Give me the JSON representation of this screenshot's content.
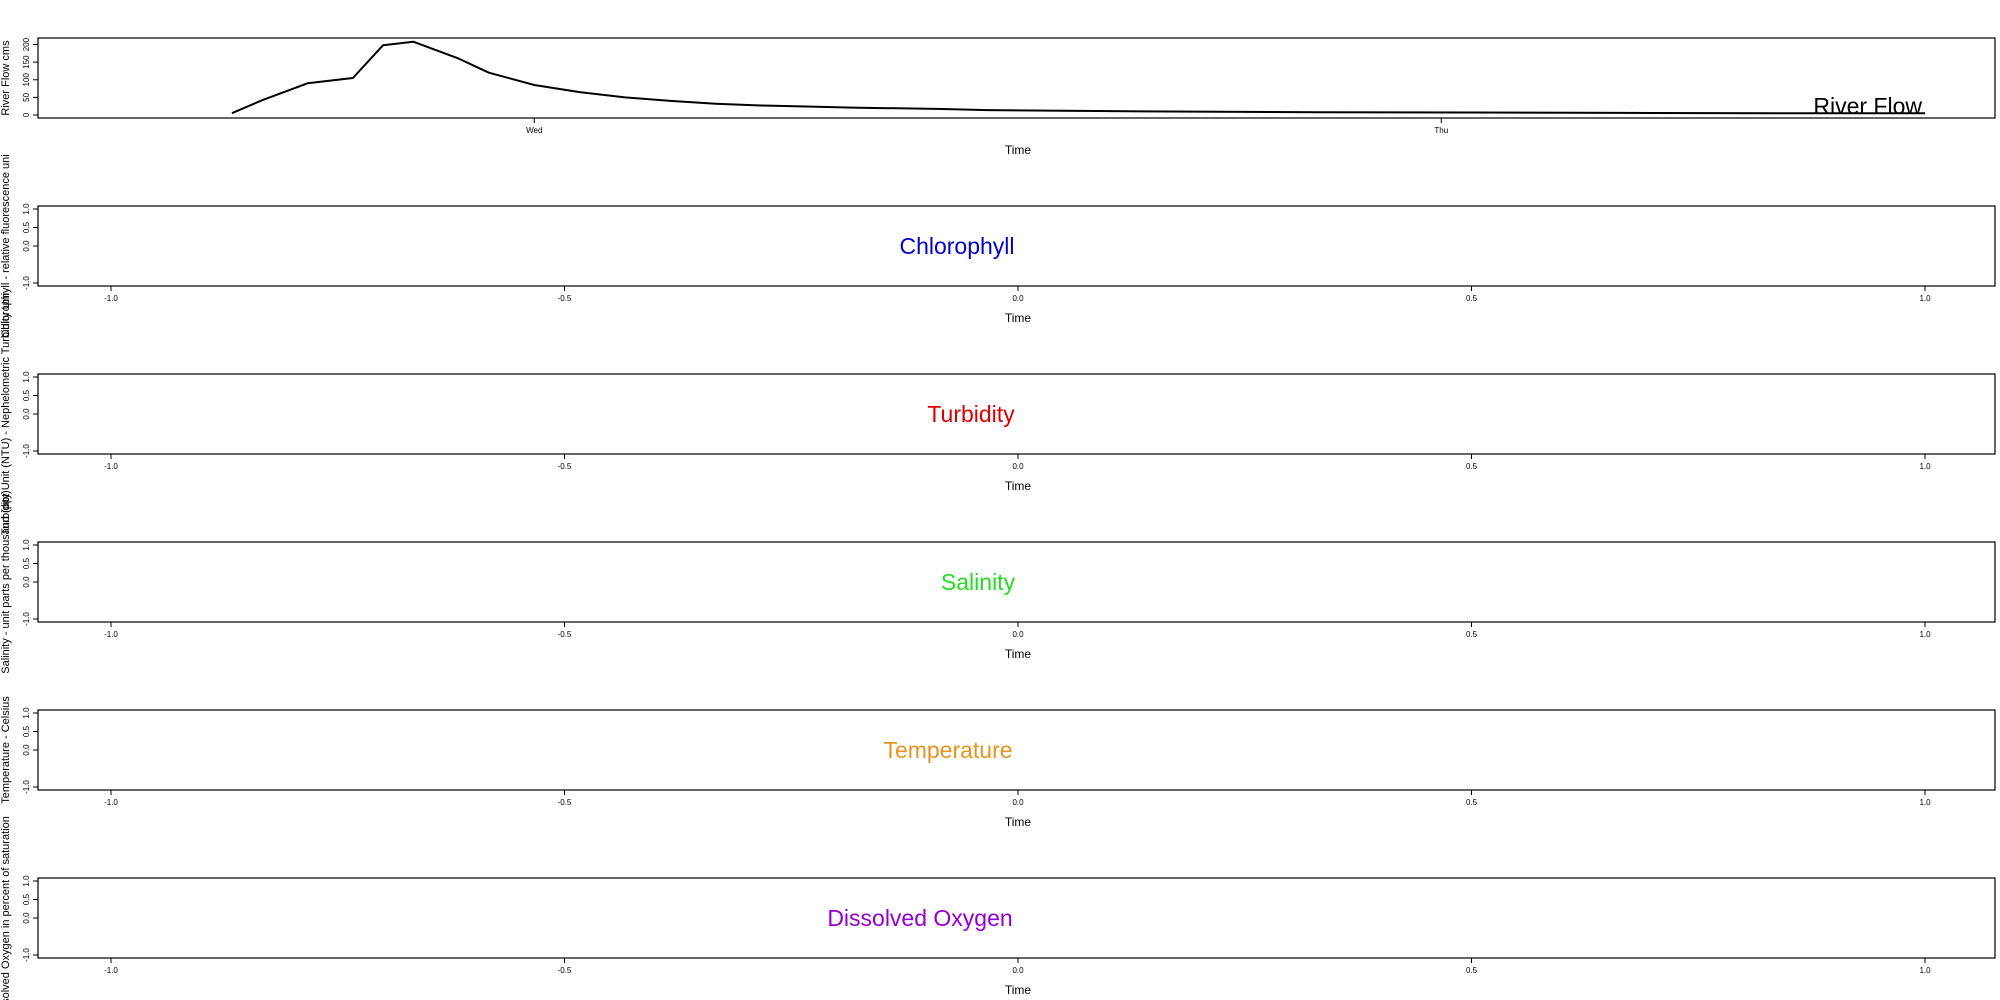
{
  "chart_data": [
    {
      "type": "line",
      "title": "River Flow",
      "title_color": "#000000",
      "xlabel": "Time",
      "ylabel": "River Flow cms",
      "xlim": [
        0,
        12
      ],
      "ylim": [
        0,
        210
      ],
      "x_ticks": [
        {
          "value": 2.8,
          "label": "Wed"
        },
        {
          "value": 8.8,
          "label": "Thu"
        }
      ],
      "y_ticks": [
        {
          "value": 0,
          "label": "0"
        },
        {
          "value": 50,
          "label": "50"
        },
        {
          "value": 100,
          "label": "100"
        },
        {
          "value": 150,
          "label": "150"
        },
        {
          "value": 200,
          "label": "200"
        }
      ],
      "grid": false,
      "series": [
        {
          "color": "#000000",
          "x": [
            0.8,
            1.0,
            1.3,
            1.6,
            1.8,
            2.0,
            2.3,
            2.5,
            2.8,
            3.1,
            3.4,
            3.7,
            4.0,
            4.3,
            4.6,
            4.9,
            5.2,
            5.5,
            5.8,
            6.3,
            7.0,
            8.0,
            9.0,
            10.0,
            11.0,
            12.0
          ],
          "values": [
            5,
            42,
            90,
            105,
            198,
            208,
            160,
            120,
            85,
            65,
            50,
            40,
            32,
            27,
            24,
            21,
            19,
            17,
            14,
            12,
            10,
            8,
            7,
            6,
            5,
            5
          ]
        }
      ]
    },
    {
      "type": "line",
      "title": "Chlorophyll",
      "title_color": "#0000cd",
      "xlabel": "Time",
      "ylabel": "Chlorophyll - relative fluorescence uni",
      "xlim": [
        -1.0,
        1.0
      ],
      "ylim": [
        -1.0,
        1.0
      ],
      "x_ticks": [
        {
          "value": -1.0,
          "label": "-1.0"
        },
        {
          "value": -0.5,
          "label": "-0.5"
        },
        {
          "value": 0.0,
          "label": "0.0"
        },
        {
          "value": 0.5,
          "label": "0.5"
        },
        {
          "value": 1.0,
          "label": "1.0"
        }
      ],
      "y_ticks": [
        {
          "value": -1.0,
          "label": "-1.0"
        },
        {
          "value": 0.0,
          "label": "0.0"
        },
        {
          "value": 0.5,
          "label": "0.5"
        },
        {
          "value": 1.0,
          "label": "1.0"
        }
      ],
      "grid": false,
      "series": []
    },
    {
      "type": "line",
      "title": "Turbidity",
      "title_color": "#dd0000",
      "xlabel": "Time",
      "ylabel": "Turbidity Unit (NTU) - Nephelometric Turbidity Uni",
      "xlim": [
        -1.0,
        1.0
      ],
      "ylim": [
        -1.0,
        1.0
      ],
      "x_ticks": [
        {
          "value": -1.0,
          "label": "-1.0"
        },
        {
          "value": -0.5,
          "label": "-0.5"
        },
        {
          "value": 0.0,
          "label": "0.0"
        },
        {
          "value": 0.5,
          "label": "0.5"
        },
        {
          "value": 1.0,
          "label": "1.0"
        }
      ],
      "y_ticks": [
        {
          "value": -1.0,
          "label": "-1.0"
        },
        {
          "value": 0.0,
          "label": "0.0"
        },
        {
          "value": 0.5,
          "label": "0.5"
        },
        {
          "value": 1.0,
          "label": "1.0"
        }
      ],
      "grid": false,
      "series": []
    },
    {
      "type": "line",
      "title": "Salinity",
      "title_color": "#22dd22",
      "xlabel": "Time",
      "ylabel": "Salinity - unit parts per thousand (ppt)",
      "xlim": [
        -1.0,
        1.0
      ],
      "ylim": [
        -1.0,
        1.0
      ],
      "x_ticks": [
        {
          "value": -1.0,
          "label": "-1.0"
        },
        {
          "value": -0.5,
          "label": "-0.5"
        },
        {
          "value": 0.0,
          "label": "0.0"
        },
        {
          "value": 0.5,
          "label": "0.5"
        },
        {
          "value": 1.0,
          "label": "1.0"
        }
      ],
      "y_ticks": [
        {
          "value": -1.0,
          "label": "-1.0"
        },
        {
          "value": 0.0,
          "label": "0.0"
        },
        {
          "value": 0.5,
          "label": "0.5"
        },
        {
          "value": 1.0,
          "label": "1.0"
        }
      ],
      "grid": false,
      "series": []
    },
    {
      "type": "line",
      "title": "Temperature",
      "title_color": "#e69520",
      "xlabel": "Time",
      "ylabel": "Temperature - Celsius",
      "xlim": [
        -1.0,
        1.0
      ],
      "ylim": [
        -1.0,
        1.0
      ],
      "x_ticks": [
        {
          "value": -1.0,
          "label": "-1.0"
        },
        {
          "value": -0.5,
          "label": "-0.5"
        },
        {
          "value": 0.0,
          "label": "0.0"
        },
        {
          "value": 0.5,
          "label": "0.5"
        },
        {
          "value": 1.0,
          "label": "1.0"
        }
      ],
      "y_ticks": [
        {
          "value": -1.0,
          "label": "-1.0"
        },
        {
          "value": 0.0,
          "label": "0.0"
        },
        {
          "value": 0.5,
          "label": "0.5"
        },
        {
          "value": 1.0,
          "label": "1.0"
        }
      ],
      "grid": false,
      "series": []
    },
    {
      "type": "line",
      "title": "Dissolved Oxygen",
      "title_color": "#9400d3",
      "xlabel": "Time",
      "ylabel": "Dissolved Oxygen in percent of saturation",
      "xlim": [
        -1.0,
        1.0
      ],
      "ylim": [
        -1.0,
        1.0
      ],
      "x_ticks": [
        {
          "value": -1.0,
          "label": "-1.0"
        },
        {
          "value": -0.5,
          "label": "-0.5"
        },
        {
          "value": 0.0,
          "label": "0.0"
        },
        {
          "value": 0.5,
          "label": "0.5"
        },
        {
          "value": 1.0,
          "label": "1.0"
        }
      ],
      "y_ticks": [
        {
          "value": -1.0,
          "label": "-1.0"
        },
        {
          "value": 0.0,
          "label": "0.0"
        },
        {
          "value": 0.5,
          "label": "0.5"
        },
        {
          "value": 1.0,
          "label": "1.0"
        }
      ],
      "grid": false,
      "series": []
    }
  ]
}
